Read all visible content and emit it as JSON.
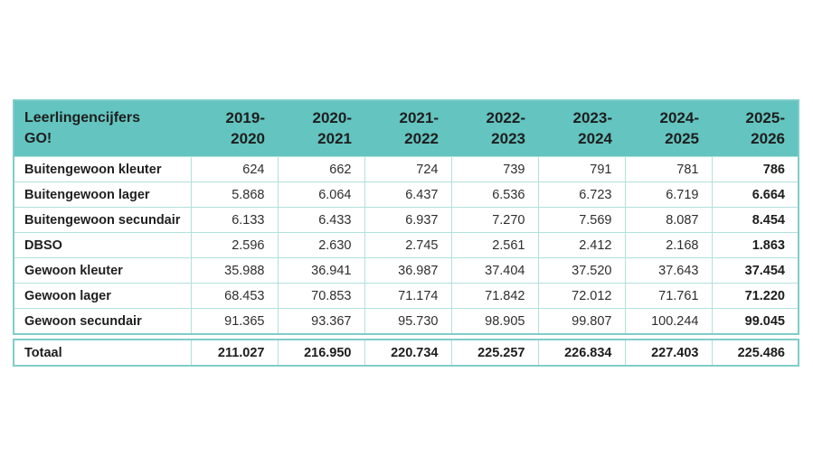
{
  "table": {
    "title": "Leerlingencijfers\nGO!",
    "columns": [
      "2019-\n2020",
      "2020-\n2021",
      "2021-\n2022",
      "2022-\n2023",
      "2023-\n2024",
      "2024-\n2025",
      "2025-\n2026"
    ],
    "rows": [
      {
        "label": "Buitengewoon kleuter",
        "values": [
          "624",
          "662",
          "724",
          "739",
          "791",
          "781",
          "786"
        ]
      },
      {
        "label": "Buitengewoon lager",
        "values": [
          "5.868",
          "6.064",
          "6.437",
          "6.536",
          "6.723",
          "6.719",
          "6.664"
        ]
      },
      {
        "label": "Buitengewoon secundair",
        "values": [
          "6.133",
          "6.433",
          "6.937",
          "7.270",
          "7.569",
          "8.087",
          "8.454"
        ]
      },
      {
        "label": "DBSO",
        "values": [
          "2.596",
          "2.630",
          "2.745",
          "2.561",
          "2.412",
          "2.168",
          "1.863"
        ]
      },
      {
        "label": "Gewoon kleuter",
        "values": [
          "35.988",
          "36.941",
          "36.987",
          "37.404",
          "37.520",
          "37.643",
          "37.454"
        ]
      },
      {
        "label": "Gewoon lager",
        "values": [
          "68.453",
          "70.853",
          "71.174",
          "71.842",
          "72.012",
          "71.761",
          "71.220"
        ]
      },
      {
        "label": "Gewoon secundair",
        "values": [
          "91.365",
          "93.367",
          "95.730",
          "98.905",
          "99.807",
          "100.244",
          "99.045"
        ]
      }
    ],
    "total": {
      "label": "Totaal",
      "values": [
        "211.027",
        "216.950",
        "220.734",
        "225.257",
        "226.834",
        "227.403",
        "225.486"
      ]
    }
  },
  "colors": {
    "header_bg": "#63c4c0",
    "outer_border": "#7fcdc8",
    "inner_border": "#b2e0dc",
    "header_text": "#1e1e1e",
    "body_text": "#2e2e2e"
  },
  "chart_data": {
    "type": "table",
    "title": "Leerlingencijfers GO!",
    "categories": [
      "2019-2020",
      "2020-2021",
      "2021-2022",
      "2022-2023",
      "2023-2024",
      "2024-2025",
      "2025-2026"
    ],
    "series": [
      {
        "name": "Buitengewoon kleuter",
        "values": [
          624,
          662,
          724,
          739,
          791,
          781,
          786
        ]
      },
      {
        "name": "Buitengewoon lager",
        "values": [
          5868,
          6064,
          6437,
          6536,
          6723,
          6719,
          6664
        ]
      },
      {
        "name": "Buitengewoon secundair",
        "values": [
          6133,
          6433,
          6937,
          7270,
          7569,
          8087,
          8454
        ]
      },
      {
        "name": "DBSO",
        "values": [
          2596,
          2630,
          2745,
          2561,
          2412,
          2168,
          1863
        ]
      },
      {
        "name": "Gewoon kleuter",
        "values": [
          35988,
          36941,
          36987,
          37404,
          37520,
          37643,
          37454
        ]
      },
      {
        "name": "Gewoon lager",
        "values": [
          68453,
          70853,
          71174,
          71842,
          72012,
          71761,
          71220
        ]
      },
      {
        "name": "Gewoon secundair",
        "values": [
          91365,
          93367,
          95730,
          98905,
          99807,
          100244,
          99045
        ]
      }
    ],
    "total_row": {
      "name": "Totaal",
      "values": [
        211027,
        216950,
        220734,
        225257,
        226834,
        227403,
        225486
      ]
    },
    "layout_hints": {
      "thousands_separator": ".",
      "last_column_bold": true,
      "total_row_bold": true,
      "header_fill": "#63c4c0"
    }
  }
}
